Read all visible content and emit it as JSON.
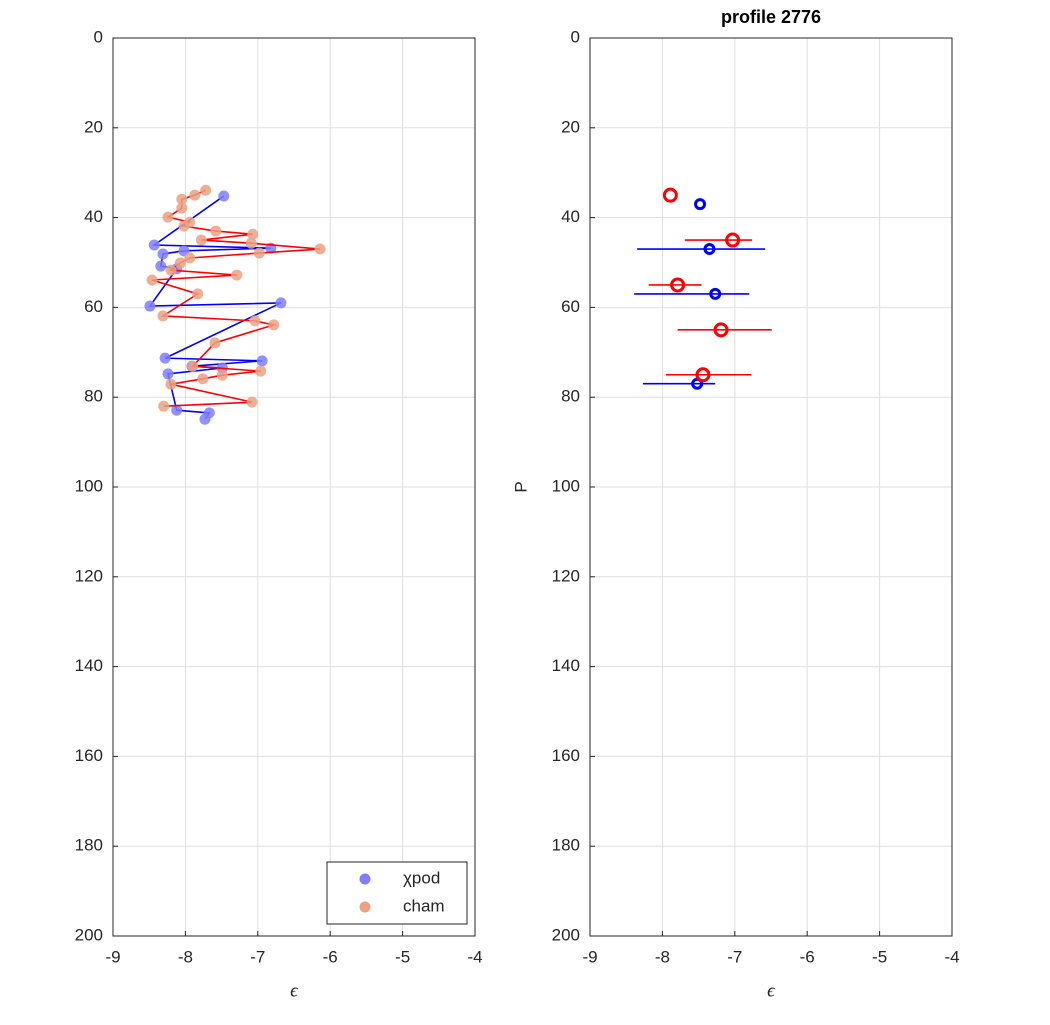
{
  "chart_data": [
    {
      "type": "scatter",
      "line_connected": true,
      "xlabel": "ϵ",
      "xlim": [
        -9,
        -4
      ],
      "ylim": [
        0,
        200
      ],
      "y_reversed": true,
      "grid": true,
      "xticks": [
        -9,
        -8,
        -7,
        -6,
        -5,
        -4
      ],
      "yticks": [
        0,
        20,
        40,
        60,
        80,
        100,
        120,
        140,
        160,
        180,
        200
      ],
      "legend": "lower right",
      "series": [
        {
          "name": "χpod",
          "color": "#7f7fff",
          "line_color": "#0000ff",
          "x": [
            -7.47,
            -8.43,
            -6.82,
            -8.02,
            -8.31,
            -8.34,
            -8.12,
            -8.49,
            -6.68,
            -8.28,
            -6.94,
            -7.91,
            -7.49,
            -8.24,
            -8.12,
            -7.67,
            -7.73
          ],
          "values": [
            35.2,
            46.1,
            46.8,
            47.4,
            48.1,
            50.8,
            51.4,
            59.7,
            59.0,
            71.3,
            71.9,
            73.1,
            73.5,
            74.8,
            82.9,
            83.5,
            84.9
          ]
        },
        {
          "name": "cham",
          "color": "#eaa283",
          "line_color": "#ff0000",
          "x": [
            -7.72,
            -7.87,
            -8.05,
            -8.05,
            -8.24,
            -7.94,
            -8.02,
            -7.58,
            -7.07,
            -7.78,
            -7.09,
            -6.14,
            -6.98,
            -7.94,
            -8.07,
            -8.2,
            -7.29,
            -8.46,
            -7.83,
            -8.31,
            -7.04,
            -6.78,
            -7.59,
            -7.9,
            -6.96,
            -7.49,
            -7.76,
            -8.2,
            -7.08,
            -8.3
          ],
          "values": [
            33.9,
            35.0,
            35.9,
            37.9,
            39.9,
            41.0,
            41.9,
            43.0,
            43.7,
            45.0,
            45.7,
            47.0,
            47.9,
            49.0,
            50.1,
            51.7,
            52.8,
            53.9,
            57.0,
            61.9,
            63.0,
            63.9,
            67.9,
            73.1,
            74.2,
            75.1,
            75.9,
            77.1,
            81.1,
            82.0
          ]
        }
      ]
    },
    {
      "type": "errorbar",
      "title": "profile 2776",
      "xlabel": "ϵ",
      "ylabel": "P",
      "xlim": [
        -9,
        -4
      ],
      "ylim": [
        0,
        200
      ],
      "y_reversed": true,
      "grid": true,
      "xticks": [
        -9,
        -8,
        -7,
        -6,
        -5,
        -4
      ],
      "yticks": [
        0,
        20,
        40,
        60,
        80,
        100,
        120,
        140,
        160,
        180,
        200
      ],
      "series": [
        {
          "color": "#0000ff",
          "x": [
            -7.48,
            -7.35,
            -7.27,
            -7.52
          ],
          "values": [
            37,
            47,
            57,
            77
          ],
          "xlow": [
            null,
            -8.35,
            -8.39,
            -8.27
          ],
          "xhigh": [
            null,
            -6.58,
            -6.8,
            -7.27
          ]
        },
        {
          "color": "#ff0000",
          "x": [
            -7.89,
            -7.03,
            -7.79,
            -7.19,
            -7.44
          ],
          "values": [
            35,
            45,
            55,
            65,
            75
          ],
          "xlow": [
            null,
            -7.69,
            -8.19,
            -7.79,
            -7.95
          ],
          "xhigh": [
            null,
            -6.76,
            -7.46,
            -6.49,
            -6.77
          ]
        }
      ]
    }
  ]
}
